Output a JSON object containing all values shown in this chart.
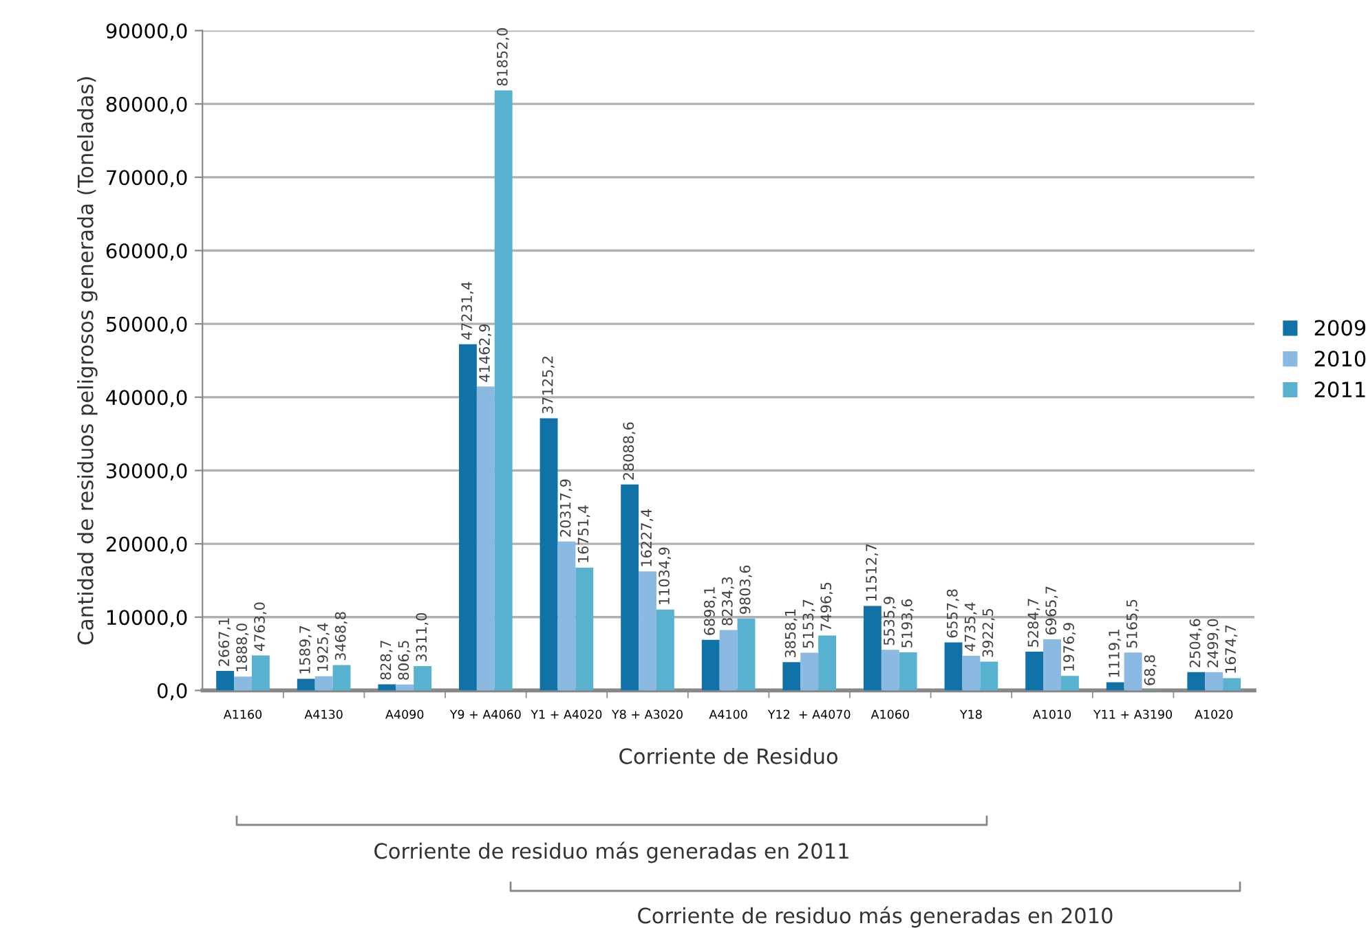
{
  "chart_data": {
    "type": "bar",
    "xlabel": "Corriente de Residuo",
    "ylabel": "Cantidad de residuos peligrosos generada (Toneladas)",
    "categories": [
      "A1160",
      "A4130",
      "A4090",
      "Y9 + A4060",
      "Y1 + A4020",
      "Y8 + A3020",
      "A4100",
      "Y12  + A4070",
      "A1060",
      "Y18",
      "A1010",
      "Y11 + A3190",
      "A1020"
    ],
    "series": [
      {
        "name": "2009",
        "color": "#1172a8",
        "values": [
          2667.1,
          1589.7,
          828.7,
          47231.4,
          37125.2,
          28088.6,
          6898.1,
          3858.1,
          11512.7,
          6557.8,
          5284.7,
          1119.1,
          2504.6
        ],
        "value_labels": [
          "2667,1",
          "1589,7",
          "828,7",
          "47231,4",
          "37125,2",
          "28088,6",
          "6898,1",
          "3858,1",
          "11512,7",
          "6557,8",
          "5284,7",
          "1119,1",
          "2504,6"
        ]
      },
      {
        "name": "2010",
        "color": "#8ab9e2",
        "values": [
          1888.0,
          1925.4,
          806.5,
          41462.9,
          20317.9,
          16227.4,
          8234.3,
          5153.7,
          5535.9,
          4735.4,
          6965.7,
          5165.5,
          2499.0
        ],
        "value_labels": [
          "1888,0",
          "1925,4",
          "806,5",
          "41462,9",
          "20317,9",
          "16227,4",
          "8234,3",
          "5153,7",
          "5535,9",
          "4735,4",
          "6965,7",
          "5165,5",
          "2499,0"
        ]
      },
      {
        "name": "2011",
        "color": "#58b1cf",
        "values": [
          4763.0,
          3468.8,
          3311.0,
          81852.0,
          16751.4,
          11034.9,
          9803.6,
          7496.5,
          5193.6,
          3922.5,
          1976.9,
          68.8,
          1674.7
        ],
        "value_labels": [
          "4763,0",
          "3468,8",
          "3311,0",
          "81852,0",
          "16751,4",
          "11034,9",
          "9803,6",
          "7496,5",
          "5193,6",
          "3922,5",
          "1976,9",
          "68,8",
          "1674,7"
        ]
      }
    ],
    "ylim": [
      0,
      90000
    ],
    "yticks": [
      {
        "value": 0,
        "label": "0,0"
      },
      {
        "value": 10000,
        "label": "10000,0"
      },
      {
        "value": 20000,
        "label": "20000,0"
      },
      {
        "value": 30000,
        "label": "30000,0"
      },
      {
        "value": 40000,
        "label": "40000,0"
      },
      {
        "value": 50000,
        "label": "50000,0"
      },
      {
        "value": 60000,
        "label": "60000,0"
      },
      {
        "value": 70000,
        "label": "70000,0"
      },
      {
        "value": 80000,
        "label": "80000,0"
      },
      {
        "value": 90000,
        "label": "90000,0"
      }
    ],
    "grid": "y",
    "legend": "right",
    "annotations": [
      "Corriente de residuo más generadas en 2011",
      "Corriente de residuo más generadas en 2010"
    ]
  }
}
